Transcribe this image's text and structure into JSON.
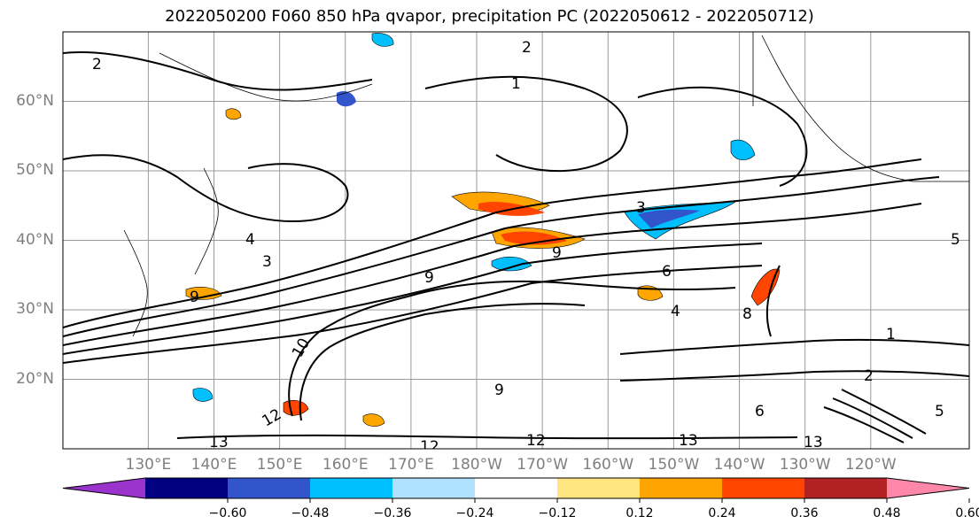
{
  "figure": {
    "title": "2022050200 F060 850 hPa qvapor, precipitation PC (2022050612 - 2022050712)"
  },
  "map": {
    "projection": "plate-carree",
    "lon_range_deg_east": [
      117,
      255
    ],
    "lat_range": [
      10,
      70
    ],
    "lat_ticks": [
      {
        "value": 20,
        "label": "20°N"
      },
      {
        "value": 30,
        "label": "30°N"
      },
      {
        "value": 40,
        "label": "40°N"
      },
      {
        "value": 50,
        "label": "50°N"
      },
      {
        "value": 60,
        "label": "60°N"
      }
    ],
    "lon_ticks": [
      {
        "value": 130,
        "label": "130°E"
      },
      {
        "value": 140,
        "label": "140°E"
      },
      {
        "value": 150,
        "label": "150°E"
      },
      {
        "value": 160,
        "label": "160°E"
      },
      {
        "value": 170,
        "label": "170°E"
      },
      {
        "value": 180,
        "label": "180°W"
      },
      {
        "value": 190,
        "label": "170°W"
      },
      {
        "value": 200,
        "label": "160°W"
      },
      {
        "value": 210,
        "label": "150°W"
      },
      {
        "value": 220,
        "label": "140°W"
      },
      {
        "value": 230,
        "label": "130°W"
      },
      {
        "value": 240,
        "label": "120°W"
      }
    ],
    "gridlines": true,
    "gridline_color": "#9a9a9a",
    "tick_label_color": "#7f7f7f",
    "contour_field": "850 hPa qvapor",
    "contour_labels_visible": [
      "1",
      "2",
      "3",
      "4",
      "5",
      "6",
      "8",
      "9",
      "10",
      "12",
      "13"
    ]
  },
  "colorbar": {
    "orientation": "horizontal",
    "extend": "both",
    "levels": [
      {
        "value": -0.6,
        "label": "−0.60"
      },
      {
        "value": -0.48,
        "label": "−0.48"
      },
      {
        "value": -0.36,
        "label": "−0.36"
      },
      {
        "value": -0.24,
        "label": "−0.24"
      },
      {
        "value": -0.12,
        "label": "−0.12"
      },
      {
        "value": 0.12,
        "label": "0.12"
      },
      {
        "value": 0.24,
        "label": "0.24"
      },
      {
        "value": 0.36,
        "label": "0.36"
      },
      {
        "value": 0.48,
        "label": "0.48"
      },
      {
        "value": 0.6,
        "label": "0.60"
      }
    ],
    "colors": [
      "#9933cc",
      "#000080",
      "#3355cc",
      "#00bfff",
      "#b0e2ff",
      "#ffffff",
      "#ffe680",
      "#ffa500",
      "#ff4500",
      "#b22222",
      "#ff88aa"
    ]
  }
}
